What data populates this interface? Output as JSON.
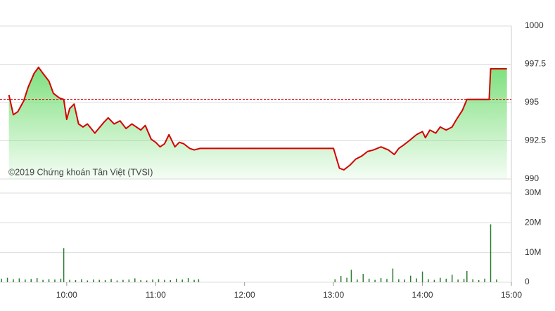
{
  "chart_data": [
    {
      "type": "line",
      "annotation": "©2019 Chứng khoán Tân Việt (TVSI)",
      "x": [
        "09:21",
        "09:24",
        "09:27",
        "09:31",
        "09:34",
        "09:38",
        "09:41",
        "09:44",
        "09:48",
        "09:51",
        "09:55",
        "09:58",
        "10:00",
        "10:02",
        "10:05",
        "10:08",
        "10:11",
        "10:14",
        "10:19",
        "10:25",
        "10:28",
        "10:32",
        "10:36",
        "10:40",
        "10:44",
        "10:50",
        "10:53",
        "10:57",
        "11:00",
        "11:03",
        "11:06",
        "11:09",
        "11:13",
        "11:16",
        "11:19",
        "11:23",
        "11:26",
        "11:30",
        "13:00",
        "13:04",
        "13:07",
        "13:11",
        "13:15",
        "13:19",
        "13:23",
        "13:27",
        "13:32",
        "13:37",
        "13:41",
        "13:44",
        "13:47",
        "13:51",
        "13:56",
        "14:00",
        "14:02",
        "14:05",
        "14:09",
        "14:12",
        "14:16",
        "14:20",
        "14:23",
        "14:27",
        "14:30",
        "14:45",
        "14:46",
        "14:57"
      ],
      "series": [
        {
          "color": "#d40000",
          "fill": "#7ee07e",
          "values": [
            995.5,
            994.2,
            994.4,
            995.1,
            996.0,
            996.9,
            997.3,
            996.9,
            996.4,
            995.6,
            995.3,
            995.2,
            993.9,
            994.6,
            994.9,
            993.6,
            993.4,
            993.6,
            993.0,
            993.7,
            994.0,
            993.6,
            993.8,
            993.3,
            993.6,
            993.2,
            993.5,
            992.6,
            992.4,
            992.1,
            992.3,
            992.9,
            992.1,
            992.4,
            992.3,
            992.0,
            991.9,
            992.0,
            992.0,
            990.7,
            990.6,
            990.9,
            991.3,
            991.5,
            991.8,
            991.9,
            992.1,
            991.9,
            991.6,
            992.0,
            992.2,
            992.5,
            992.9,
            993.1,
            992.7,
            993.2,
            993.0,
            993.4,
            993.2,
            993.4,
            993.9,
            994.5,
            995.2,
            995.2,
            997.2,
            997.2
          ]
        }
      ],
      "reference": 995.2,
      "reference_color": "#d40000",
      "xlim": [
        "09:15",
        "15:00"
      ],
      "ylim": [
        990,
        1000
      ],
      "yticks": [
        990,
        992.5,
        995,
        997.5,
        1000
      ],
      "grid": true
    },
    {
      "type": "bar",
      "x": [
        "09:16",
        "09:20",
        "09:24",
        "09:28",
        "09:32",
        "09:36",
        "09:40",
        "09:44",
        "09:48",
        "09:52",
        "09:56",
        "09:58",
        "10:02",
        "10:06",
        "10:10",
        "10:14",
        "10:18",
        "10:22",
        "10:26",
        "10:30",
        "10:34",
        "10:38",
        "10:42",
        "10:46",
        "10:50",
        "10:54",
        "10:58",
        "11:02",
        "11:06",
        "11:10",
        "11:14",
        "11:18",
        "11:22",
        "11:26",
        "11:29",
        "13:01",
        "13:05",
        "13:09",
        "13:12",
        "13:16",
        "13:20",
        "13:24",
        "13:28",
        "13:32",
        "13:36",
        "13:40",
        "13:44",
        "13:48",
        "13:52",
        "13:56",
        "14:00",
        "14:04",
        "14:08",
        "14:12",
        "14:16",
        "14:20",
        "14:24",
        "14:28",
        "14:30",
        "14:34",
        "14:38",
        "14:42",
        "14:46",
        "14:50"
      ],
      "values": [
        1200000,
        1500000,
        1000000,
        1300000,
        900000,
        1100000,
        1400000,
        800000,
        1000000,
        900000,
        1200000,
        11500000,
        800000,
        700000,
        1000000,
        600000,
        900000,
        800000,
        700000,
        1100000,
        600000,
        800000,
        900000,
        1300000,
        700000,
        600000,
        900000,
        1000000,
        800000,
        700000,
        1200000,
        900000,
        1400000,
        800000,
        1000000,
        1000000,
        2100000,
        1500000,
        4200000,
        900000,
        2800000,
        1200000,
        800000,
        1400000,
        1100000,
        4600000,
        1000000,
        900000,
        2200000,
        1300000,
        3600000,
        1000000,
        800000,
        1500000,
        1200000,
        2500000,
        900000,
        1100000,
        3800000,
        1000000,
        700000,
        1200000,
        19500000,
        900000
      ],
      "color": "#2e7d32",
      "xlim": [
        "09:15",
        "15:00"
      ],
      "xticks": [
        "10:00",
        "11:00",
        "12:00",
        "13:00",
        "14:00",
        "15:00"
      ],
      "ylim": [
        0,
        30000000
      ],
      "yticks": [
        0,
        {
          "value": 10000000,
          "label": "10M"
        },
        {
          "value": 20000000,
          "label": "20M"
        },
        {
          "value": 30000000,
          "label": "30M"
        }
      ],
      "grid": true
    }
  ]
}
